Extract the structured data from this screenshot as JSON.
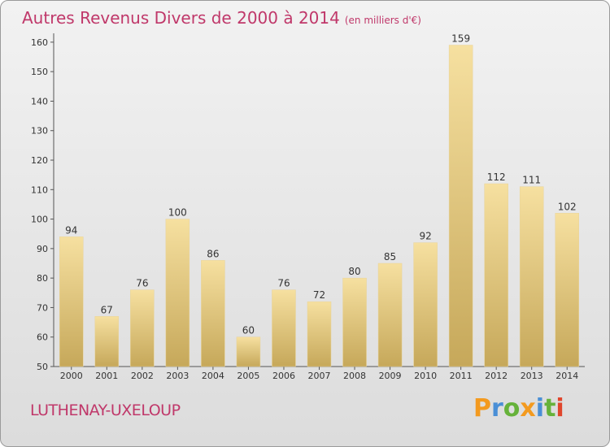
{
  "header": {
    "title": "Autres Revenus Divers de 2000 à 2014",
    "unit": "(en milliers d'€)"
  },
  "footer": {
    "commune": "LUTHENAY-UXELOUP",
    "logo_text": "Proxiti"
  },
  "colors": {
    "title": "#c0386a",
    "bar_light": "#f6e0a0",
    "bar_dark": "#c6a85a",
    "logo_letters": [
      "#f39a1f",
      "#4a8fd6",
      "#66b23a",
      "#f39a1f",
      "#4a8fd6",
      "#66b23a",
      "#e0462c"
    ]
  },
  "chart_data": {
    "type": "bar",
    "categories": [
      "2000",
      "2001",
      "2002",
      "2003",
      "2004",
      "2005",
      "2006",
      "2007",
      "2008",
      "2009",
      "2010",
      "2011",
      "2012",
      "2013",
      "2014"
    ],
    "values": [
      94,
      67,
      76,
      100,
      86,
      60,
      76,
      72,
      80,
      85,
      92,
      159,
      112,
      111,
      102
    ],
    "title": "Autres Revenus Divers de 2000 à 2014",
    "ylim": [
      50,
      163
    ],
    "yticks": [
      50,
      60,
      70,
      80,
      90,
      100,
      110,
      120,
      130,
      140,
      150,
      160
    ],
    "grid": false,
    "legend": "none"
  }
}
